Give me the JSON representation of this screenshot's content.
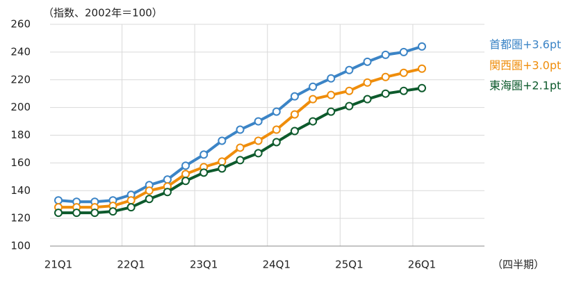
{
  "chart_data": {
    "type": "line",
    "title": "（指数、2002年＝100）",
    "x_axis_label": "（四半期）",
    "categories": [
      "21Q1",
      null,
      null,
      null,
      "22Q1",
      null,
      null,
      null,
      "23Q1",
      null,
      null,
      null,
      "24Q1",
      null,
      null,
      null,
      "25Q1",
      null,
      null,
      null,
      "26Q1"
    ],
    "series": [
      {
        "name": "首都圏+3.6pt",
        "color": "#3b84c6",
        "values": [
          133,
          132,
          132,
          133,
          137,
          144,
          148,
          158,
          166,
          176,
          184,
          190,
          197,
          208,
          215,
          221,
          227,
          233,
          238,
          240,
          244
        ]
      },
      {
        "name": "関西圏+3.0pt",
        "color": "#ef8d0b",
        "values": [
          128,
          128,
          128,
          129,
          133,
          140,
          143,
          152,
          157,
          161,
          171,
          176,
          184,
          195,
          206,
          209,
          212,
          218,
          222,
          225,
          228
        ]
      },
      {
        "name": "東海圏+2.1pt",
        "color": "#0d5a2c",
        "values": [
          124,
          124,
          124,
          125,
          128,
          134,
          139,
          147,
          153,
          156,
          162,
          167,
          175,
          183,
          190,
          197,
          201,
          206,
          210,
          212,
          214
        ]
      }
    ],
    "ylim": [
      100,
      260
    ],
    "yticks": [
      100,
      120,
      140,
      160,
      180,
      200,
      220,
      240,
      260
    ],
    "grid": true
  }
}
